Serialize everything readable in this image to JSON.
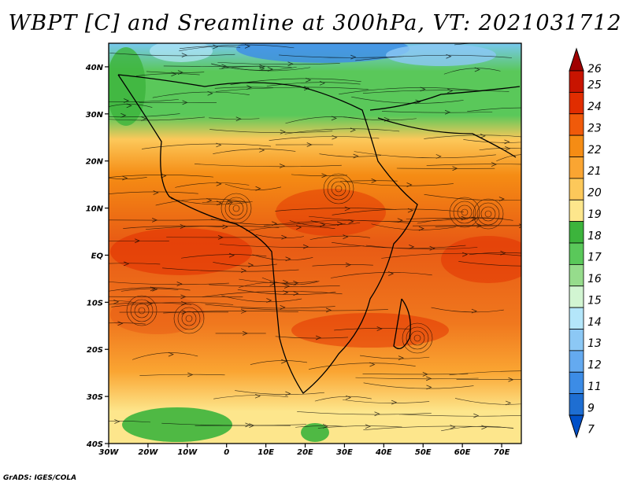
{
  "title": "WBPT [C] and Sreamline at 300hPa, VT: 2021031712",
  "credit": "GrADS: IGES/COLA",
  "map": {
    "lat_ticks": [
      "40N",
      "30N",
      "20N",
      "10N",
      "EQ",
      "10S",
      "20S",
      "30S",
      "40S"
    ],
    "lon_ticks": [
      "30W",
      "20W",
      "10W",
      "0",
      "10E",
      "20E",
      "30E",
      "40E",
      "50E",
      "60E",
      "70E"
    ],
    "lat_range": [
      -40,
      45
    ],
    "lon_range": [
      -30,
      75
    ]
  },
  "colorbar": {
    "labels": [
      "26",
      "25",
      "24",
      "23",
      "22",
      "21",
      "20",
      "19",
      "18",
      "17",
      "16",
      "15",
      "14",
      "13",
      "12",
      "11",
      "9",
      "7"
    ],
    "colors": [
      "#a00000",
      "#c81400",
      "#e12d00",
      "#f05a0a",
      "#f58c14",
      "#faa532",
      "#fcc85a",
      "#fde68c",
      "#3cb43c",
      "#5ac85a",
      "#96dc8c",
      "#d2f5d2",
      "#b4e6fa",
      "#8cc8f5",
      "#64aaf0",
      "#3c8ce6",
      "#1e6ed2",
      "#0050c8"
    ]
  }
}
